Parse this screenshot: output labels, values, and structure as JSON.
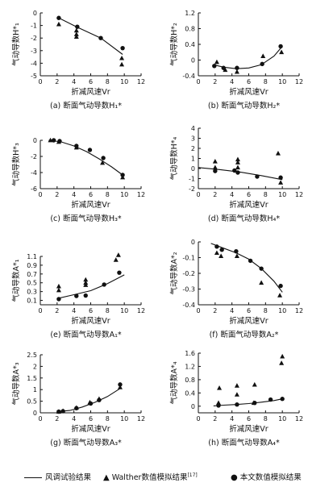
{
  "legend": {
    "curve": "风调试验结果",
    "walther": "Walther数值模拟结果",
    "walther_ref": "[17]",
    "present": "本文数值模拟结果"
  },
  "chart_data": [
    {
      "id": "a",
      "type": "scatter",
      "caption": "(a) 断面气动导数H₁*",
      "xlabel": "折减风速Vr",
      "ylabel": "气动导数H*₁",
      "xlim": [
        0,
        12
      ],
      "ylim": [
        -5,
        0
      ],
      "xticks": [
        0,
        2,
        4,
        6,
        8,
        10,
        12
      ],
      "yticks": [
        0,
        -1,
        -2,
        -3,
        -4,
        -5
      ],
      "series": [
        {
          "name": "风调试验结果",
          "kind": "line",
          "x": [
            2.2,
            4.3,
            7.2,
            9.8
          ],
          "y": [
            -0.4,
            -1.1,
            -2.0,
            -3.3
          ]
        },
        {
          "name": "Walther数值模拟结果",
          "kind": "triangle",
          "x": [
            2.2,
            4.3,
            4.3,
            4.3,
            9.7,
            9.7
          ],
          "y": [
            -0.9,
            -1.4,
            -1.7,
            -1.9,
            -3.6,
            -4.1
          ]
        },
        {
          "name": "本文数值模拟结果",
          "kind": "circle",
          "x": [
            2.2,
            4.4,
            7.2,
            9.8
          ],
          "y": [
            -0.4,
            -1.1,
            -2.0,
            -2.8
          ]
        }
      ]
    },
    {
      "id": "b",
      "type": "scatter",
      "caption": "(b) 断面气动导数H₂*",
      "xlabel": "折减风速Vr",
      "ylabel": "气动导数H*₂",
      "xlim": [
        0,
        12
      ],
      "ylim": [
        -0.4,
        1.2
      ],
      "xticks": [
        0,
        2,
        4,
        6,
        8,
        10,
        12
      ],
      "yticks": [
        1.2,
        0.8,
        0.4,
        0,
        -0.4
      ],
      "series": [
        {
          "name": "风调试验结果",
          "kind": "line",
          "x": [
            1.8,
            3,
            4.5,
            6,
            7.5,
            9,
            10
          ],
          "y": [
            -0.12,
            -0.18,
            -0.22,
            -0.2,
            -0.12,
            0.1,
            0.35
          ]
        },
        {
          "name": "Walther数值模拟结果",
          "kind": "triangle",
          "x": [
            2.2,
            3.2,
            4.6,
            7.7,
            9.9
          ],
          "y": [
            -0.05,
            -0.25,
            -0.3,
            0.1,
            0.2
          ]
        },
        {
          "name": "本文数值模拟结果",
          "kind": "circle",
          "x": [
            1.9,
            3.0,
            4.6,
            7.6,
            9.8
          ],
          "y": [
            -0.15,
            -0.2,
            -0.2,
            -0.1,
            0.35
          ]
        }
      ]
    },
    {
      "id": "c",
      "type": "scatter",
      "caption": "(c) 断面气动导数H₃*",
      "xlabel": "折减风速Vr",
      "ylabel": "气动导数H*₃",
      "xlim": [
        0,
        12
      ],
      "ylim": [
        -6,
        0
      ],
      "xticks": [
        0,
        2,
        4,
        6,
        8,
        10,
        12
      ],
      "yticks": [
        0,
        -2,
        -4,
        -6
      ],
      "series": [
        {
          "name": "风调试验结果",
          "kind": "line",
          "x": [
            1,
            2.5,
            4,
            5.5,
            7,
            8.5,
            9.8
          ],
          "y": [
            0,
            -0.2,
            -0.7,
            -1.4,
            -2.3,
            -3.3,
            -4.3
          ]
        },
        {
          "name": "Walther数值模拟结果",
          "kind": "triangle",
          "x": [
            1.2,
            2.2,
            4.3,
            7.4,
            9.8
          ],
          "y": [
            0,
            -0.2,
            -0.9,
            -2.8,
            -4.6
          ]
        },
        {
          "name": "本文数值模拟结果",
          "kind": "circle",
          "x": [
            1.6,
            2.3,
            4.3,
            5.9,
            7.5,
            9.8
          ],
          "y": [
            0,
            -0.1,
            -0.7,
            -1.2,
            -2.2,
            -4.3
          ]
        }
      ]
    },
    {
      "id": "d",
      "type": "scatter",
      "caption": "(d) 断面气动导数H₄*",
      "xlabel": "折减风速Vr",
      "ylabel": "气动导数H*₄",
      "xlim": [
        0,
        12
      ],
      "ylim": [
        -2,
        4
      ],
      "xticks": [
        0,
        2,
        4,
        6,
        8,
        10,
        12
      ],
      "yticks": [
        4,
        3,
        2,
        1,
        0,
        -1,
        -2
      ],
      "series": [
        {
          "name": "风调试验结果",
          "kind": "line",
          "x": [
            0,
            2.5,
            5,
            7.5,
            10
          ],
          "y": [
            0.1,
            -0.1,
            -0.35,
            -0.7,
            -1.1
          ]
        },
        {
          "name": "Walther数值模拟结果",
          "kind": "triangle",
          "x": [
            2.0,
            2.0,
            4.7,
            4.7,
            4.7,
            9.5,
            9.8
          ],
          "y": [
            0.7,
            0.1,
            0.9,
            0.6,
            0.1,
            1.5,
            -1.4
          ]
        },
        {
          "name": "本文数值模拟结果",
          "kind": "circle",
          "x": [
            2.0,
            4.3,
            4.7,
            7.0,
            9.8
          ],
          "y": [
            -0.25,
            -0.2,
            -0.4,
            -0.8,
            -0.9
          ]
        }
      ]
    },
    {
      "id": "e",
      "type": "scatter",
      "caption": "(e) 断面气动导数A₁*",
      "xlabel": "折减风速Vr",
      "ylabel": "气动导数A*₁",
      "xlim": [
        0,
        12
      ],
      "ylim": [
        0,
        1.1
      ],
      "xticks": [
        0,
        2,
        4,
        6,
        8,
        10,
        12
      ],
      "yticks": [
        1.1,
        0.9,
        0.7,
        0.5,
        0.3,
        0.1
      ],
      "series": [
        {
          "name": "风调试验结果",
          "kind": "line",
          "x": [
            2.2,
            4,
            6,
            8,
            10
          ],
          "y": [
            0.15,
            0.23,
            0.32,
            0.48,
            0.68
          ]
        },
        {
          "name": "Walther数值模拟结果",
          "kind": "triangle",
          "x": [
            2.2,
            2.2,
            5.4,
            5.4,
            5.4,
            9.0,
            9.3
          ],
          "y": [
            0.33,
            0.42,
            0.45,
            0.5,
            0.57,
            1.02,
            1.13
          ]
        },
        {
          "name": "本文数值模拟结果",
          "kind": "circle",
          "x": [
            2.2,
            4.3,
            5.4,
            7.6,
            9.4
          ],
          "y": [
            0.13,
            0.2,
            0.21,
            0.46,
            0.73
          ]
        }
      ]
    },
    {
      "id": "f",
      "type": "scatter",
      "caption": "(f) 断面气动导数A₂*",
      "xlabel": "折减风速Vr",
      "ylabel": "气动导数A*₂",
      "xlim": [
        0,
        12
      ],
      "ylim": [
        -0.4,
        0
      ],
      "xticks": [
        0,
        2,
        4,
        6,
        8,
        10,
        12
      ],
      "yticks": [
        0,
        -0.1,
        -0.2,
        -0.3,
        -0.4
      ],
      "series": [
        {
          "name": "风调试验结果",
          "kind": "line",
          "x": [
            1.5,
            3,
            4.5,
            6,
            7.5,
            9,
            10
          ],
          "y": [
            -0.01,
            -0.04,
            -0.07,
            -0.11,
            -0.17,
            -0.25,
            -0.32
          ]
        },
        {
          "name": "Walther数值模拟结果",
          "kind": "triangle",
          "x": [
            2.2,
            2.7,
            4.6,
            7.5,
            9.7
          ],
          "y": [
            -0.07,
            -0.09,
            -0.09,
            -0.26,
            -0.34
          ]
        },
        {
          "name": "本文数值模拟结果",
          "kind": "circle",
          "x": [
            2.2,
            2.8,
            4.5,
            6.2,
            7.5,
            9.8
          ],
          "y": [
            -0.03,
            -0.05,
            -0.06,
            -0.12,
            -0.17,
            -0.28
          ]
        }
      ]
    },
    {
      "id": "g",
      "type": "scatter",
      "caption": "(g) 断面气动导数A₃*",
      "xlabel": "折减风速Vr",
      "ylabel": "气动导数A*₃",
      "xlim": [
        0,
        12
      ],
      "ylim": [
        0,
        2.5
      ],
      "xticks": [
        0,
        2,
        4,
        6,
        8,
        10,
        12
      ],
      "yticks": [
        2.5,
        2.0,
        1.5,
        1.0,
        0.5,
        0
      ],
      "series": [
        {
          "name": "风调试验结果",
          "kind": "line",
          "x": [
            2,
            3.5,
            5,
            6.5,
            8,
            9.5
          ],
          "y": [
            0.05,
            0.1,
            0.25,
            0.45,
            0.7,
            1.05
          ]
        },
        {
          "name": "Walther数值模拟结果",
          "kind": "triangle",
          "x": [
            2.2,
            2.7,
            4.3,
            5.9,
            7.0,
            9.5
          ],
          "y": [
            0.05,
            0.08,
            0.22,
            0.45,
            0.6,
            1.1
          ]
        },
        {
          "name": "本文数值模拟结果",
          "kind": "circle",
          "x": [
            2.2,
            2.7,
            4.3,
            6.0,
            7.0,
            9.5
          ],
          "y": [
            0.05,
            0.07,
            0.2,
            0.4,
            0.55,
            1.22
          ]
        }
      ]
    },
    {
      "id": "h",
      "type": "scatter",
      "caption": "(h) 断面气动导数A₄*",
      "xlabel": "折减风速Vr",
      "ylabel": "气动导数A*₄",
      "xlim": [
        0,
        12
      ],
      "ylim": [
        -0.2,
        1.6
      ],
      "xticks": [
        0,
        2,
        4,
        6,
        8,
        10,
        12
      ],
      "yticks": [
        1.6,
        1.2,
        0.8,
        0.4,
        0
      ],
      "series": [
        {
          "name": "风调试验结果",
          "kind": "line",
          "x": [
            1.8,
            3,
            4.5,
            6,
            7.5,
            9,
            10
          ],
          "y": [
            0.01,
            0.03,
            0.05,
            0.08,
            0.12,
            0.17,
            0.22
          ]
        },
        {
          "name": "Walther数值模拟结果",
          "kind": "triangle",
          "x": [
            2.4,
            2.5,
            4.6,
            4.6,
            6.6,
            6.7,
            9.9,
            10.0
          ],
          "y": [
            0.1,
            0.55,
            0.35,
            0.62,
            0.1,
            0.65,
            1.3,
            1.5
          ]
        },
        {
          "name": "本文数值模拟结果",
          "kind": "circle",
          "x": [
            2.4,
            4.6,
            6.7,
            8.6,
            10.0
          ],
          "y": [
            0.02,
            0.05,
            0.1,
            0.2,
            0.22
          ]
        }
      ]
    }
  ]
}
